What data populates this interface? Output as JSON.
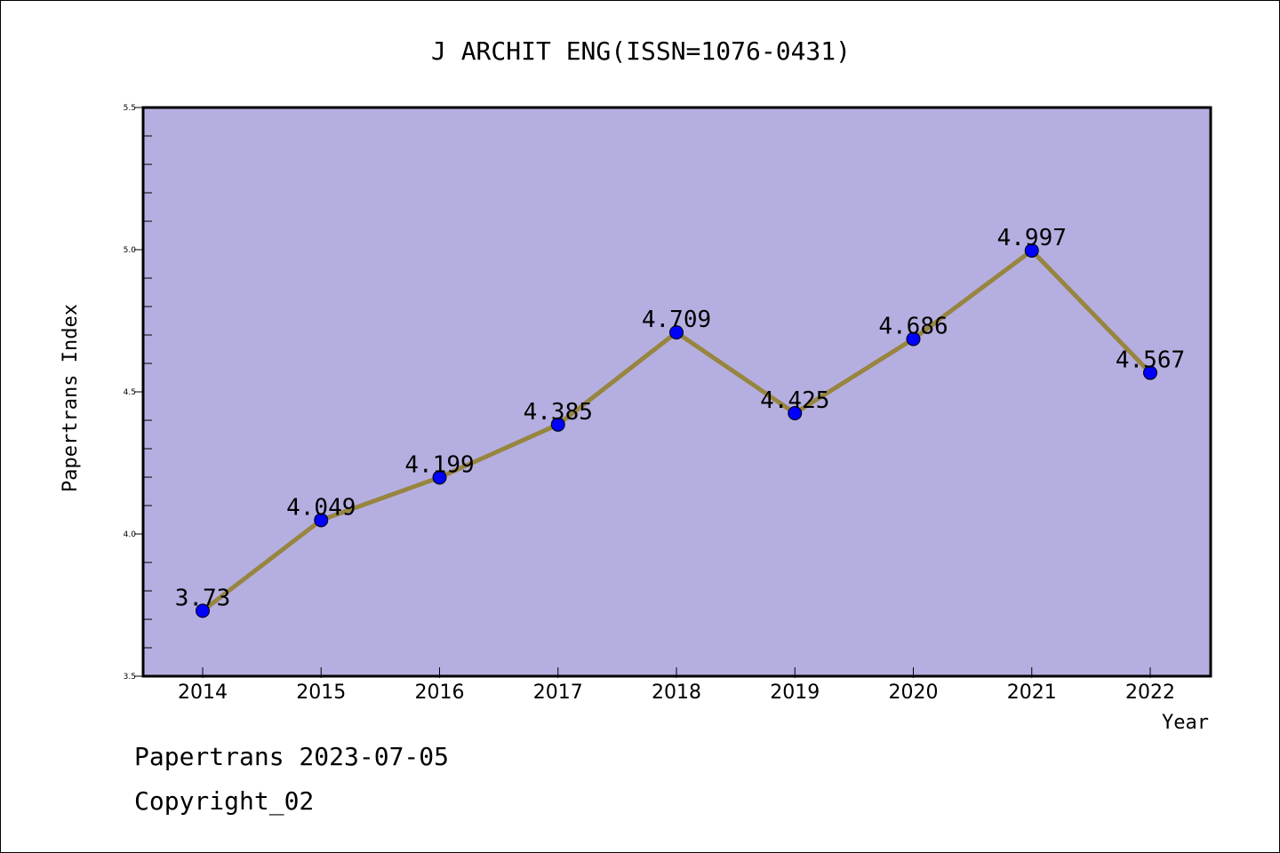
{
  "colors": {
    "plot_background": "#b5afe1",
    "line": "#978540",
    "marker": "#0000ff"
  },
  "chart_data": {
    "type": "line",
    "title": "J ARCHIT ENG(ISSN=1076-0431)",
    "xlabel": "Year",
    "ylabel": "Papertrans Index",
    "categories": [
      "2014",
      "2015",
      "2016",
      "2017",
      "2018",
      "2019",
      "2020",
      "2021",
      "2022"
    ],
    "series": [
      {
        "values": [
          3.73,
          4.049,
          4.199,
          4.385,
          4.709,
          4.425,
          4.686,
          4.997,
          4.567
        ],
        "labels": [
          "3.73",
          "4.049",
          "4.199",
          "4.385",
          "4.709",
          "4.425",
          "4.686",
          "4.997",
          "4.567"
        ]
      }
    ],
    "ylim": [
      3.5,
      5.5
    ],
    "yticks": [
      "3.5",
      "4.0",
      "4.5",
      "5.0",
      "5.5"
    ],
    "grid": false,
    "legend": "none"
  },
  "footer": {
    "line1": "Papertrans 2023-07-05",
    "line2": "Copyright_02"
  }
}
